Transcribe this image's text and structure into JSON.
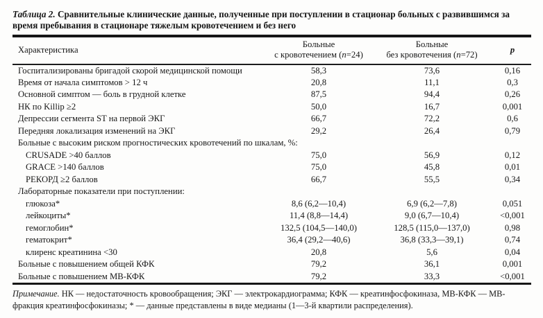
{
  "title": {
    "label": "Таблица 2.",
    "text": "Сравнительные клинические данные, полученные при поступлении в стационар больных с развившимся за время пребывания в стационаре тяжелым кровотечением и без него"
  },
  "table": {
    "headers": {
      "characteristic": "Характеристика",
      "col_bleeding_line1": "Больные",
      "col_bleeding_line2": "с кровотечением (n=24)",
      "col_no_bleeding_line1": "Больные",
      "col_no_bleeding_line2": "без кровотечения (n=72)",
      "p": "p"
    },
    "rows": [
      {
        "label": "Госпитализированы бригадой скорой медицинской помощи",
        "v1": "58,3",
        "v2": "73,6",
        "p": "0,16",
        "indent": false,
        "section": false
      },
      {
        "label": "Время от начала симптомов > 12 ч",
        "v1": "20,8",
        "v2": "11,1",
        "p": "0,3",
        "indent": false,
        "section": false
      },
      {
        "label": "Основной симптом — боль в грудной клетке",
        "v1": "87,5",
        "v2": "94,4",
        "p": "0,26",
        "indent": false,
        "section": false
      },
      {
        "label": "НК по Killip ≥2",
        "v1": "50,0",
        "v2": "16,7",
        "p": "0,001",
        "indent": false,
        "section": false
      },
      {
        "label": "Депрессии сегмента ST на первой ЭКГ",
        "v1": "66,7",
        "v2": "72,2",
        "p": "0,6",
        "indent": false,
        "section": false
      },
      {
        "label": "Передняя локализация изменений на ЭКГ",
        "v1": "29,2",
        "v2": "26,4",
        "p": "0,79",
        "indent": false,
        "section": false
      },
      {
        "label": "Больные с высоким риском прогностических кровотечений по шкалам, %:",
        "v1": "",
        "v2": "",
        "p": "",
        "indent": false,
        "section": true
      },
      {
        "label": "CRUSADE >40 баллов",
        "v1": "75,0",
        "v2": "56,9",
        "p": "0,12",
        "indent": true,
        "section": false
      },
      {
        "label": "GRACE >140 баллов",
        "v1": "75,0",
        "v2": "45,8",
        "p": "0,01",
        "indent": true,
        "section": false
      },
      {
        "label": "РЕКОРД ≥2 баллов",
        "v1": "66,7",
        "v2": "55,5",
        "p": "0,34",
        "indent": true,
        "section": false
      },
      {
        "label": "Лабораторные показатели при поступлении:",
        "v1": "",
        "v2": "",
        "p": "",
        "indent": false,
        "section": true
      },
      {
        "label": "глюкоза*",
        "v1": "8,6 (6,2—10,4)",
        "v2": "6,9 (6,2—7,8)",
        "p": "0,051",
        "indent": true,
        "section": false
      },
      {
        "label": "лейкоциты*",
        "v1": "11,4 (8,8—14,4)",
        "v2": "9,0 (6,7—10,4)",
        "p": "<0,001",
        "indent": true,
        "section": false
      },
      {
        "label": "гемоглобин*",
        "v1": "132,5 (104,5—140,0)",
        "v2": "128,5 (115,0—137,0)",
        "p": "0,98",
        "indent": true,
        "section": false
      },
      {
        "label": "гематокрит*",
        "v1": "36,4 (29,2—40,6)",
        "v2": "36,8 (33,3—39,1)",
        "p": "0,74",
        "indent": true,
        "section": false
      },
      {
        "label": "клиренс креатинина <30",
        "v1": "20,8",
        "v2": "5,6",
        "p": "0,04",
        "indent": true,
        "section": false
      },
      {
        "label": "Больные с повышением общей КФК",
        "v1": "79,2",
        "v2": "36,1",
        "p": "0,001",
        "indent": false,
        "section": false
      },
      {
        "label": "Больные с повышением МВ-КФК",
        "v1": "79,2",
        "v2": "33,3",
        "p": "<0,001",
        "indent": false,
        "section": false
      }
    ]
  },
  "footnote": {
    "label": "Примечание.",
    "text": "НК — недостаточность кровообращения; ЭКГ — электрокардиограмма; КФК — креатинфосфокиназа, МВ-КФК — МВ-фракция креатинфосфокиназы; * — данные представлены в виде медианы (1—3-й квартили распределения)."
  },
  "colors": {
    "text": "#171717",
    "rule": "#161616",
    "background": "#fdfdfc"
  }
}
